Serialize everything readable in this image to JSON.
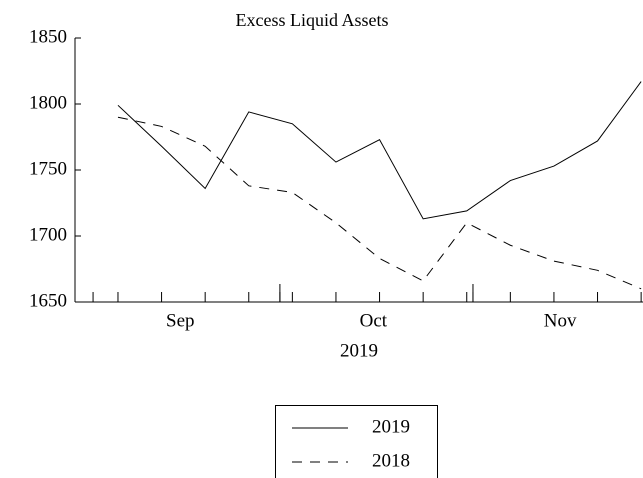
{
  "chart_data": {
    "type": "line",
    "title": "Excess Liquid Assets",
    "xlabel": "2019",
    "x": [
      4,
      11,
      18,
      25,
      32,
      39,
      46,
      53,
      60,
      67,
      74,
      81,
      88
    ],
    "series": [
      {
        "name": "2019",
        "color": "#000000",
        "dash": "solid",
        "values": [
          1799,
          1768,
          1736,
          1794,
          1785,
          1756,
          1773,
          1713,
          1719,
          1742,
          1753,
          1772,
          1817
        ]
      },
      {
        "name": "2018",
        "color": "#000000",
        "dash": "dashed",
        "values": [
          1790,
          1783,
          1768,
          1738,
          1733,
          1710,
          1683,
          1666,
          1710,
          1693,
          1681,
          1674,
          1660
        ]
      }
    ],
    "xlim": [
      -2.9,
      88.3
    ],
    "xticks": [
      {
        "value": 14,
        "label": "Sep"
      },
      {
        "value": 45,
        "label": "Oct"
      },
      {
        "value": 75,
        "label": "Nov"
      }
    ],
    "xminorticks": [
      0,
      4,
      11,
      18,
      25,
      30,
      32,
      39,
      46,
      53,
      60,
      61,
      67,
      74,
      81,
      88
    ],
    "xmajorticks": [
      30,
      61
    ],
    "ylim": [
      1650,
      1850
    ],
    "yticks": [
      1650,
      1700,
      1750,
      1800,
      1850
    ],
    "legend": "bottom"
  }
}
